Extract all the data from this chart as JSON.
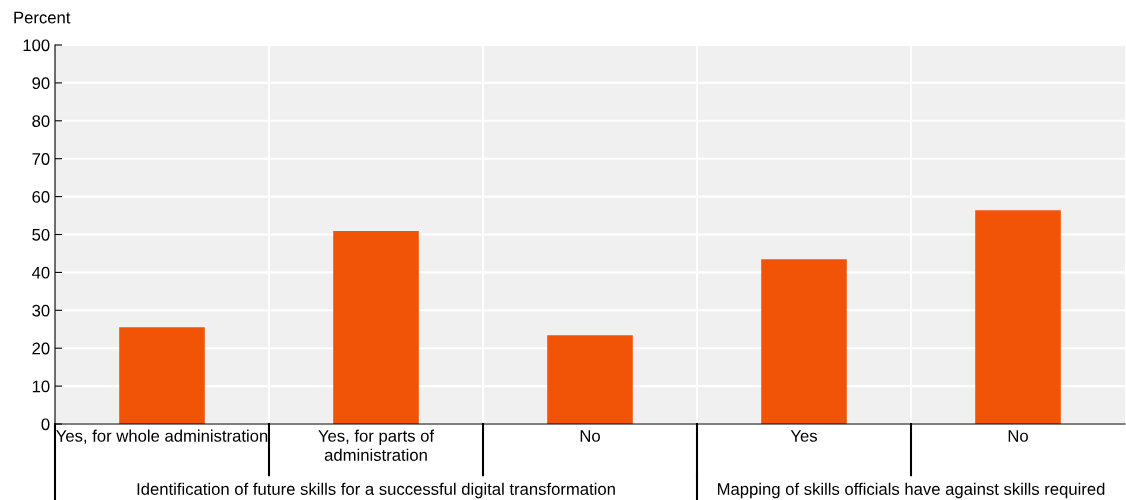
{
  "chart_data": {
    "type": "bar",
    "ylabel": "Percent",
    "categories": [
      "Yes, for whole administration",
      "Yes, for parts of\nadministration",
      "No",
      "Yes",
      "No"
    ],
    "values": [
      25.5,
      50.9,
      23.4,
      43.5,
      56.4
    ],
    "color": "#f25407",
    "ylim": [
      0,
      100
    ],
    "yticks": [
      0,
      10,
      20,
      30,
      40,
      50,
      60,
      70,
      80,
      90,
      100
    ],
    "grid": "y",
    "annotations": [
      "Identification of future skills for a successful digital transformation",
      "Mapping of skills officials have against skills required"
    ]
  }
}
